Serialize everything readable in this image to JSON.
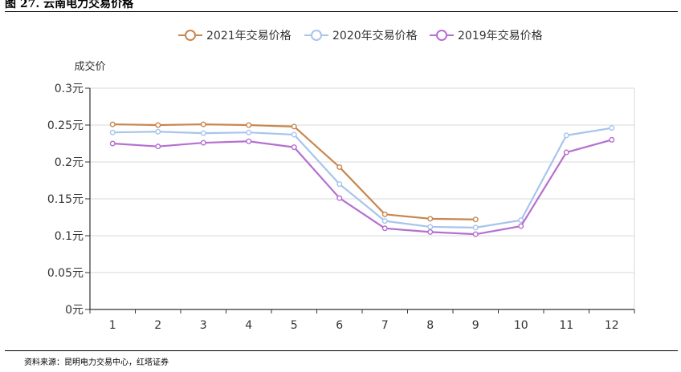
{
  "figure_title": "图 27. 云南电力交易价格",
  "source_note": "资料来源：昆明电力交易中心，红塔证券",
  "chart_data": {
    "type": "line",
    "ylabel": "成交价",
    "xlabel": "",
    "categories": [
      "1",
      "2",
      "3",
      "4",
      "5",
      "6",
      "7",
      "8",
      "9",
      "10",
      "11",
      "12"
    ],
    "y_ticks": [
      "0元",
      "0.05元",
      "0.1元",
      "0.15元",
      "0.2元",
      "0.25元",
      "0.3元"
    ],
    "ylim": [
      0,
      0.3
    ],
    "grid": true,
    "legend_position": "top-center",
    "series": [
      {
        "name": "2021年交易价格",
        "color": "#c8864f",
        "values": [
          0.251,
          0.25,
          0.251,
          0.25,
          0.248,
          0.193,
          0.129,
          0.123,
          0.122,
          null,
          null,
          null
        ]
      },
      {
        "name": "2020年交易价格",
        "color": "#a8c4ec",
        "values": [
          0.24,
          0.241,
          0.239,
          0.24,
          0.237,
          0.17,
          0.12,
          0.112,
          0.111,
          0.121,
          0.236,
          0.246
        ]
      },
      {
        "name": "2019年交易价格",
        "color": "#b56fd1",
        "values": [
          0.225,
          0.221,
          0.226,
          0.228,
          0.22,
          0.151,
          0.11,
          0.105,
          0.102,
          0.113,
          0.213,
          0.23
        ]
      }
    ]
  }
}
